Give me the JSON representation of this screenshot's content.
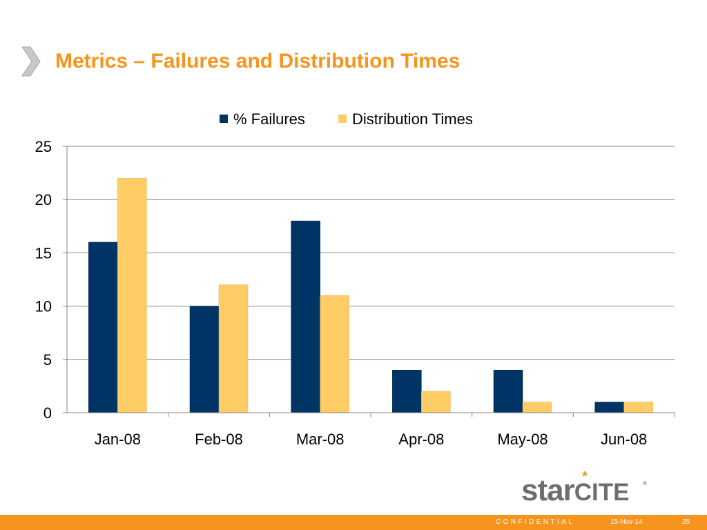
{
  "slide": {
    "title": "Metrics – Failures and Distribution Times"
  },
  "logo": {
    "star_text": "star",
    "cite_text": "CITE",
    "registered_mark": "®",
    "mark_glyph": "*"
  },
  "footer": {
    "confidential": "CONFIDENTIAL",
    "date": "15-Nov-14",
    "page": "25",
    "bar_color": "#f7941d"
  },
  "colors": {
    "title": "#f7941d",
    "series_failures": "#003366",
    "series_distribution": "#ffcc66",
    "grid": "#868686"
  },
  "chart_data": {
    "type": "bar",
    "categories": [
      "Jan-08",
      "Feb-08",
      "Mar-08",
      "Apr-08",
      "May-08",
      "Jun-08"
    ],
    "series": [
      {
        "name": "% Failures",
        "values": [
          16,
          10,
          18,
          4,
          4,
          1
        ],
        "color": "#003366"
      },
      {
        "name": "Distribution Times",
        "values": [
          22,
          12,
          11,
          2,
          1,
          1
        ],
        "color": "#ffcc66"
      }
    ],
    "ylim": [
      0,
      25
    ],
    "yticks": [
      "0",
      "5",
      "10",
      "15",
      "20",
      "25"
    ],
    "grid": true,
    "legend_position": "top-center"
  }
}
